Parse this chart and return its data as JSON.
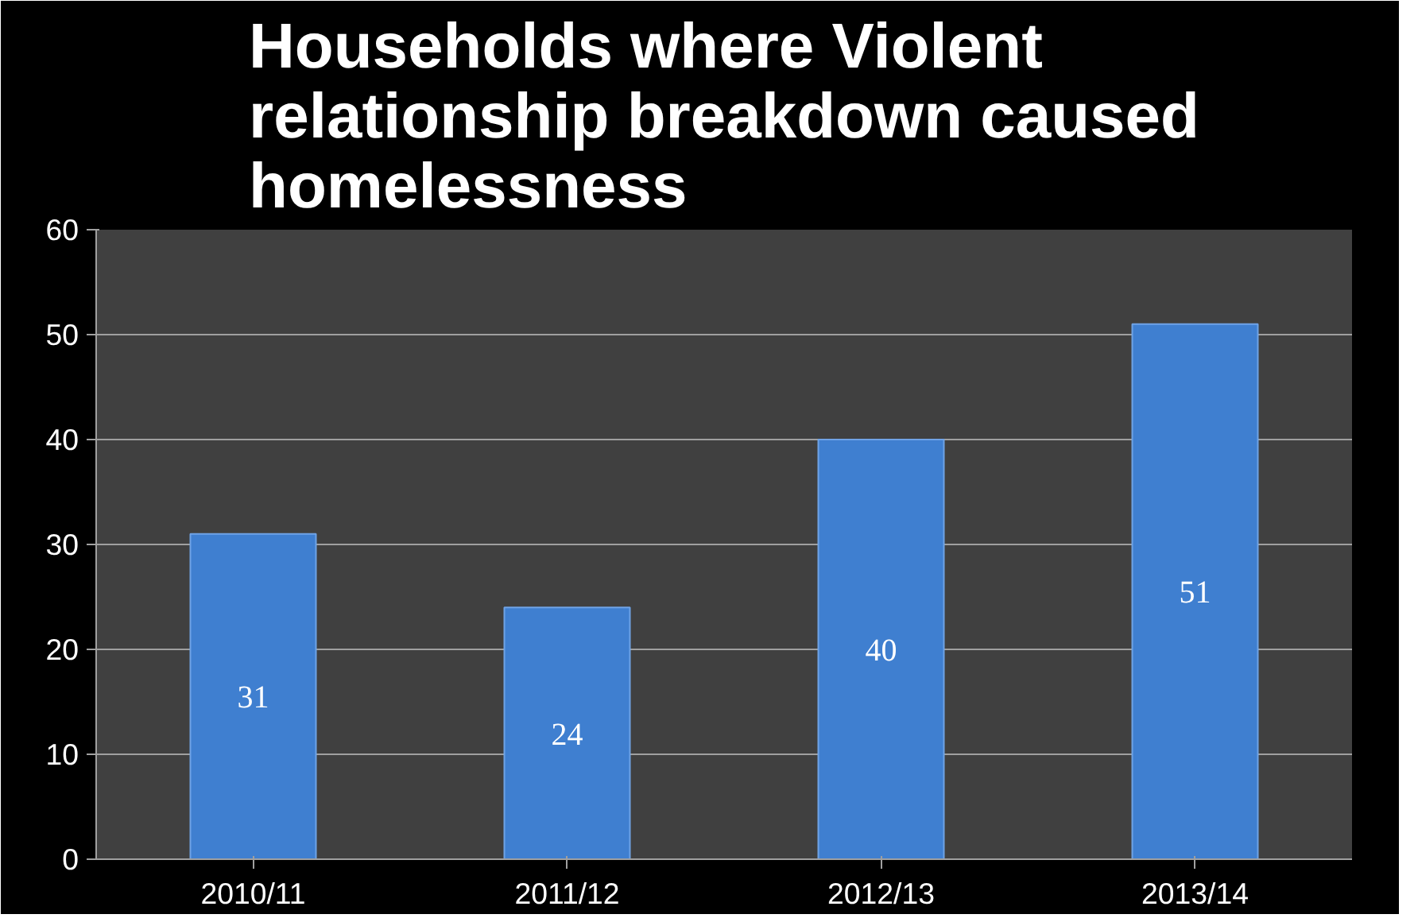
{
  "chart_data": {
    "type": "bar",
    "title": "Households where Violent relationship breakdown caused homelessness",
    "categories": [
      "2010/11",
      "2011/12",
      "2012/13",
      "2013/14"
    ],
    "values": [
      31,
      24,
      40,
      51
    ],
    "color": "#3f7fd0",
    "ylim": [
      0,
      60
    ],
    "yticks": [
      0,
      10,
      20,
      30,
      40,
      50,
      60
    ],
    "grid": "y",
    "data_labels": true
  }
}
